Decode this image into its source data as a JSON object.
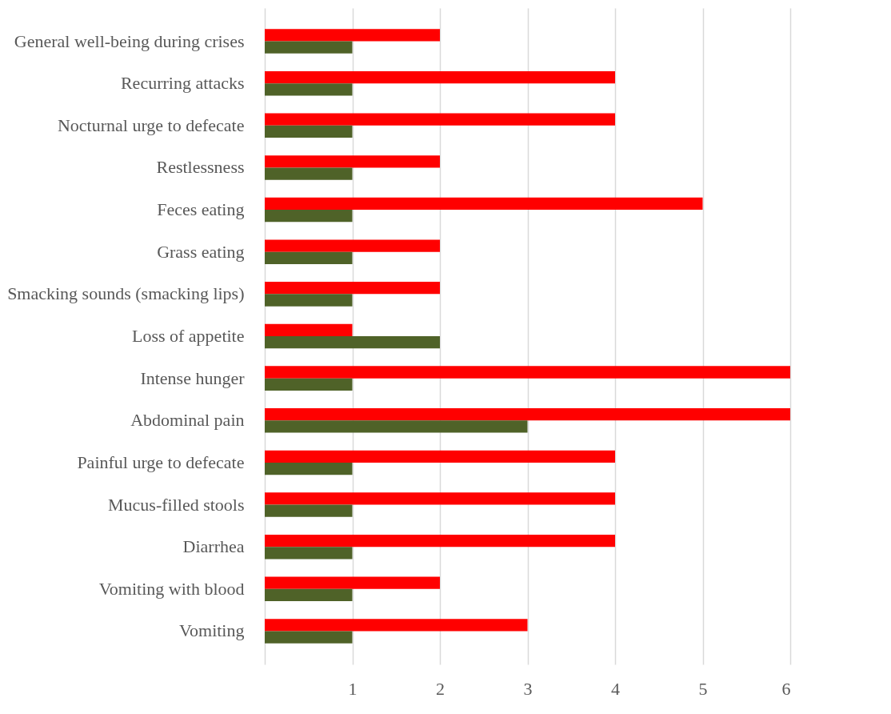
{
  "chart_data": {
    "type": "bar",
    "orientation": "horizontal",
    "categories": [
      "General well-being during crises",
      "Recurring attacks",
      "Nocturnal urge to defecate",
      "Restlessness",
      "Feces eating",
      "Grass eating",
      "Smacking sounds (smacking lips)",
      "Loss of appetite",
      "Intense hunger",
      "Abdominal pain",
      "Painful urge to defecate",
      "Mucus-filled stools",
      "Diarrhea",
      "Vomiting with blood",
      "Vomiting"
    ],
    "series": [
      {
        "color": "#ff0000",
        "values": [
          2,
          4,
          4,
          2,
          5,
          2,
          2,
          1,
          6,
          6,
          4,
          4,
          4,
          2,
          3
        ]
      },
      {
        "color": "#4f6228",
        "values": [
          1,
          1,
          1,
          1,
          1,
          1,
          1,
          2,
          1,
          3,
          1,
          1,
          1,
          1,
          1
        ]
      }
    ],
    "xlim": [
      0,
      6
    ],
    "xticks": [
      {
        "value": 0,
        "label": null
      },
      1,
      2,
      3,
      4,
      5,
      6
    ],
    "grid": "x",
    "legend": false
  }
}
